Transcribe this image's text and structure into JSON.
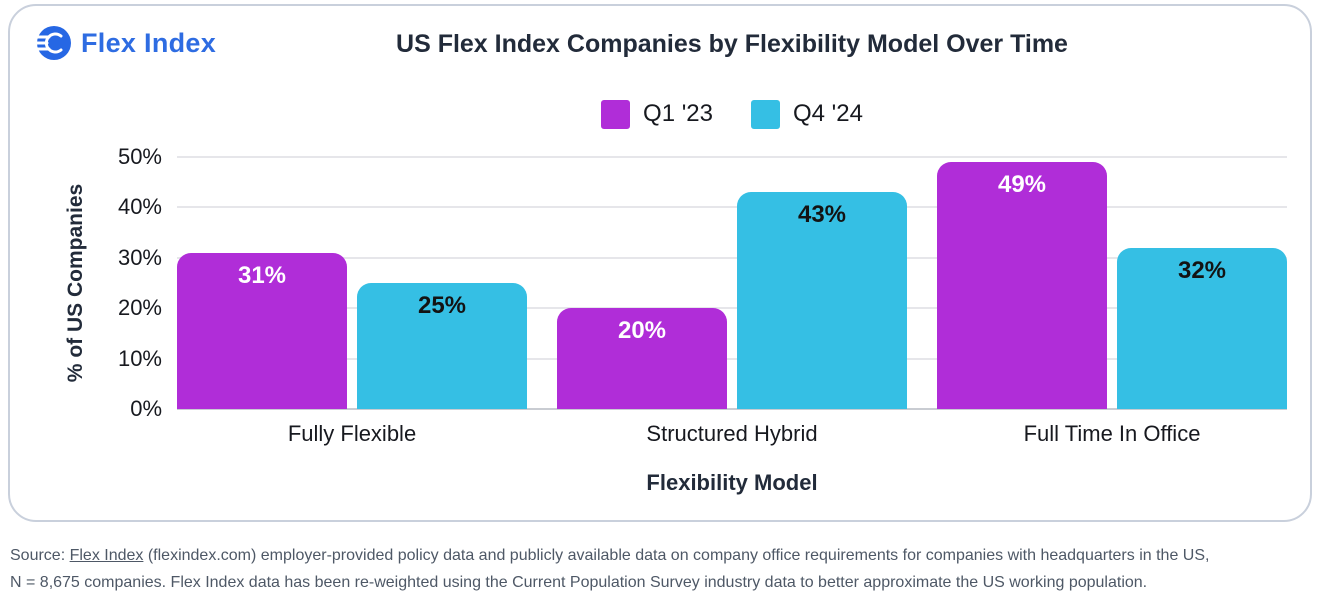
{
  "brand": {
    "name": "Flex Index"
  },
  "header": {
    "title": "US Flex Index Companies by Flexibility Model Over Time"
  },
  "footer": {
    "prefix": "Source: ",
    "link_text": "Flex Index",
    "line1_rest": " (flexindex.com) employer-provided policy data and publicly available data on company office requirements for companies with headquarters in the US,",
    "line2": "N = 8,675 companies. Flex Index data has been re-weighted using the Current Population Survey industry data to better approximate the US working population."
  },
  "chart_data": {
    "type": "bar",
    "title": "US Flex Index Companies by Flexibility Model Over Time",
    "categories": [
      "Fully Flexible",
      "Structured Hybrid",
      "Full Time In Office"
    ],
    "series": [
      {
        "name": "Q1 '23",
        "color": "#b02dd8",
        "value_label_color": "#ffffff",
        "values": [
          31,
          20,
          49
        ]
      },
      {
        "name": "Q4 '24",
        "color": "#35bfe4",
        "value_label_color": "#131313",
        "values": [
          25,
          43,
          32
        ]
      }
    ],
    "xlabel": "Flexibility Model",
    "ylabel": "% of US Companies",
    "ylim": [
      0,
      50
    ],
    "yticks": [
      "0%",
      "10%",
      "20%",
      "30%",
      "40%",
      "50%"
    ],
    "value_suffix": "%",
    "grid": true,
    "legend_position": "top-center"
  }
}
